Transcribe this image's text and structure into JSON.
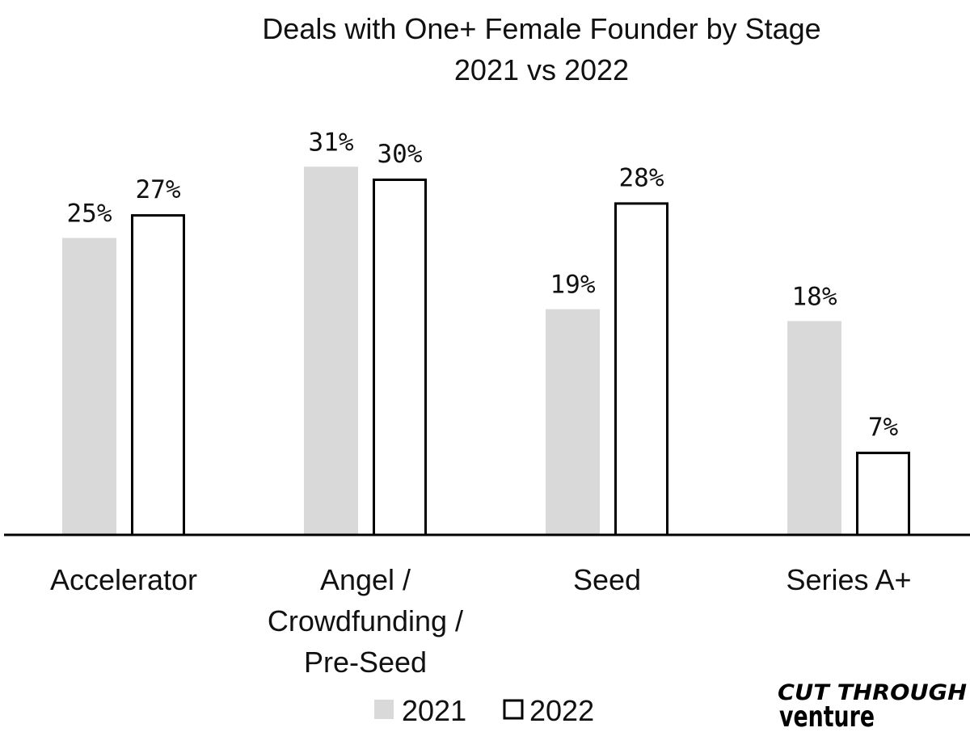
{
  "chart_data": {
    "type": "bar",
    "title": "Deals with One+ Female Founder by Stage",
    "subtitle": "2021 vs 2022",
    "categories": [
      [
        "Accelerator"
      ],
      [
        "Angel /",
        "Crowdfunding /",
        "Pre-Seed"
      ],
      [
        "Seed"
      ],
      [
        "Series A+"
      ]
    ],
    "series": [
      {
        "name": "2021",
        "values": [
          25,
          31,
          19,
          18
        ],
        "labels": [
          "25%",
          "31%",
          "19%",
          "18%"
        ],
        "color": "#d9d9d9"
      },
      {
        "name": "2022",
        "values": [
          27,
          30,
          28,
          7
        ],
        "labels": [
          "27%",
          "30%",
          "28%",
          "7%"
        ],
        "color": "#ffffff"
      }
    ],
    "xlabel": "",
    "ylabel": "",
    "ylim": [
      0,
      32
    ],
    "grid": false,
    "legend_position": "bottom"
  },
  "logo": {
    "line1": "CUT THROUGH",
    "line2": "venture"
  }
}
